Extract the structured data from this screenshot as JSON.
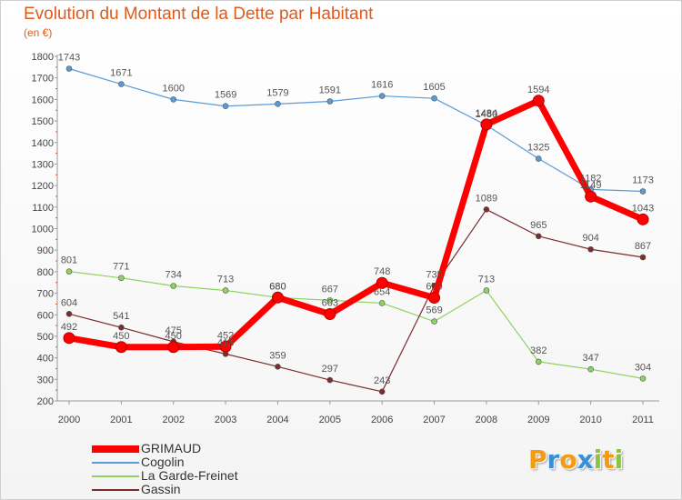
{
  "chart_data": {
    "type": "line",
    "title": "Evolution du Montant de la Dette par Habitant",
    "subtitle": "(en €)",
    "xlabel": "",
    "ylabel": "",
    "x": [
      "2000",
      "2001",
      "2002",
      "2003",
      "2004",
      "2005",
      "2006",
      "2007",
      "2008",
      "2009",
      "2010",
      "2011"
    ],
    "ylim": [
      200,
      1800
    ],
    "yticks": [
      200,
      300,
      400,
      500,
      600,
      700,
      800,
      900,
      1000,
      1100,
      1200,
      1300,
      1400,
      1500,
      1600,
      1700,
      1800
    ],
    "grid": false,
    "legend_position": "bottom-left",
    "series": [
      {
        "name": "GRIMAUD",
        "color": "#ff0000",
        "emphasis": true,
        "values": [
          492,
          450,
          450,
          452,
          680,
          603,
          748,
          679,
          1484,
          1594,
          1149,
          1043
        ]
      },
      {
        "name": "Cogolin",
        "color": "#5b9bd5",
        "emphasis": false,
        "values": [
          1743,
          1671,
          1600,
          1569,
          1579,
          1591,
          1616,
          1605,
          1480,
          1325,
          1182,
          1173
        ]
      },
      {
        "name": "La Garde-Freinet",
        "color": "#8dd35f",
        "emphasis": false,
        "values": [
          801,
          771,
          734,
          713,
          680,
          667,
          654,
          569,
          713,
          382,
          347,
          304
        ]
      },
      {
        "name": "Gassin",
        "color": "#7b2c2c",
        "emphasis": false,
        "values": [
          604,
          541,
          475,
          418,
          359,
          297,
          243,
          735,
          1089,
          965,
          904,
          867
        ]
      }
    ]
  },
  "logo": {
    "letters": [
      "P",
      "r",
      "o",
      "x",
      "i",
      "t",
      "i"
    ],
    "colors": [
      "#f39c12",
      "#3a8fd6",
      "#f39c12",
      "#3a8fd6",
      "#8bc34a",
      "#f39c12",
      "#8bc34a"
    ]
  }
}
